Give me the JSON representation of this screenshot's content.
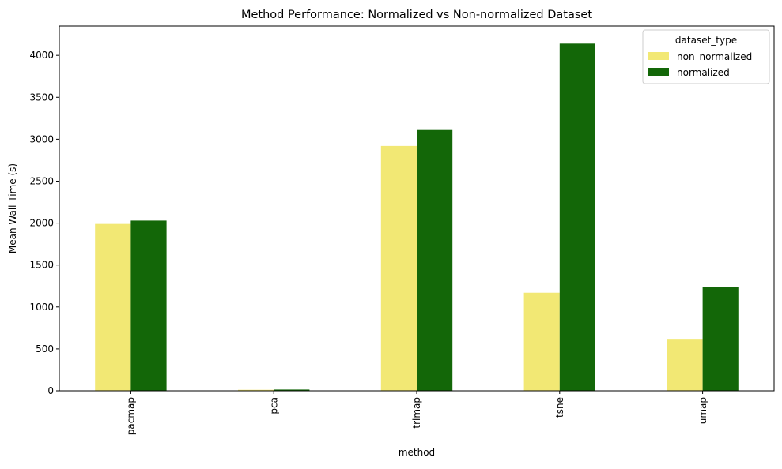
{
  "chart_data": {
    "type": "bar",
    "title": "Method Performance: Normalized vs Non-normalized Dataset",
    "xlabel": "method",
    "ylabel": "Mean Wall Time (s)",
    "categories": [
      "pacmap",
      "pca",
      "trimap",
      "tsne",
      "umap"
    ],
    "series": [
      {
        "name": "non_normalized",
        "color": "#f2e874",
        "values": [
          1990,
          12,
          2920,
          1170,
          620
        ]
      },
      {
        "name": "normalized",
        "color": "#136708",
        "values": [
          2030,
          15,
          3110,
          4140,
          1240
        ]
      }
    ],
    "ylim": [
      0,
      4350
    ],
    "yticks": [
      0,
      500,
      1000,
      1500,
      2000,
      2500,
      3000,
      3500,
      4000
    ],
    "grid": false,
    "legend": {
      "title": "dataset_type",
      "position": "top-right"
    }
  }
}
